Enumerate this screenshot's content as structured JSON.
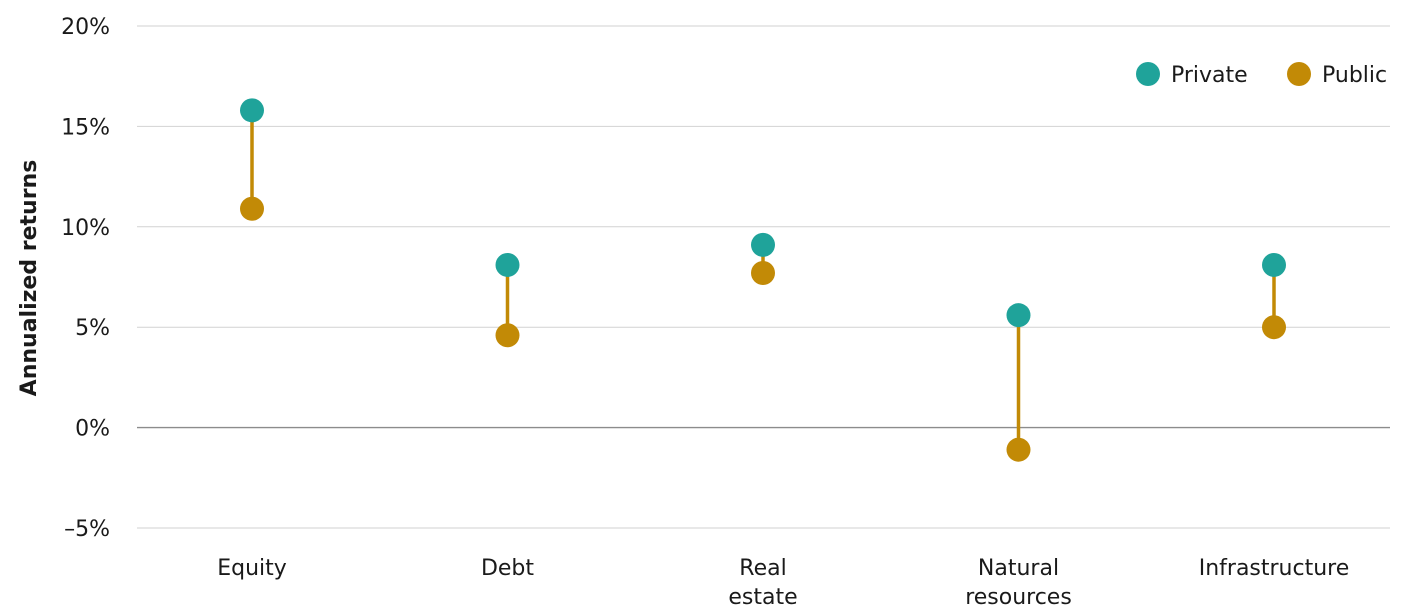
{
  "chart_data": {
    "type": "dumbbell",
    "ylabel": "Annualized returns",
    "ylim": [
      -5,
      20
    ],
    "yticks": [
      20,
      15,
      10,
      5,
      0,
      -5
    ],
    "ytick_labels": [
      "20%",
      "15%",
      "10%",
      "5%",
      "0%",
      "–5%"
    ],
    "categories": [
      [
        "Equity"
      ],
      [
        "Debt"
      ],
      [
        "Real",
        "estate"
      ],
      [
        "Natural",
        "resources"
      ],
      [
        "Infrastructure"
      ]
    ],
    "series": [
      {
        "name": "Private",
        "color": "#1fa39a",
        "values": [
          15.8,
          8.1,
          9.1,
          5.6,
          8.1
        ]
      },
      {
        "name": "Public",
        "color": "#c28a06",
        "values": [
          10.9,
          4.6,
          7.7,
          -1.1,
          5.0
        ]
      }
    ],
    "connector_color": "#c28a06",
    "grid": true,
    "legend_position": "top-right"
  }
}
